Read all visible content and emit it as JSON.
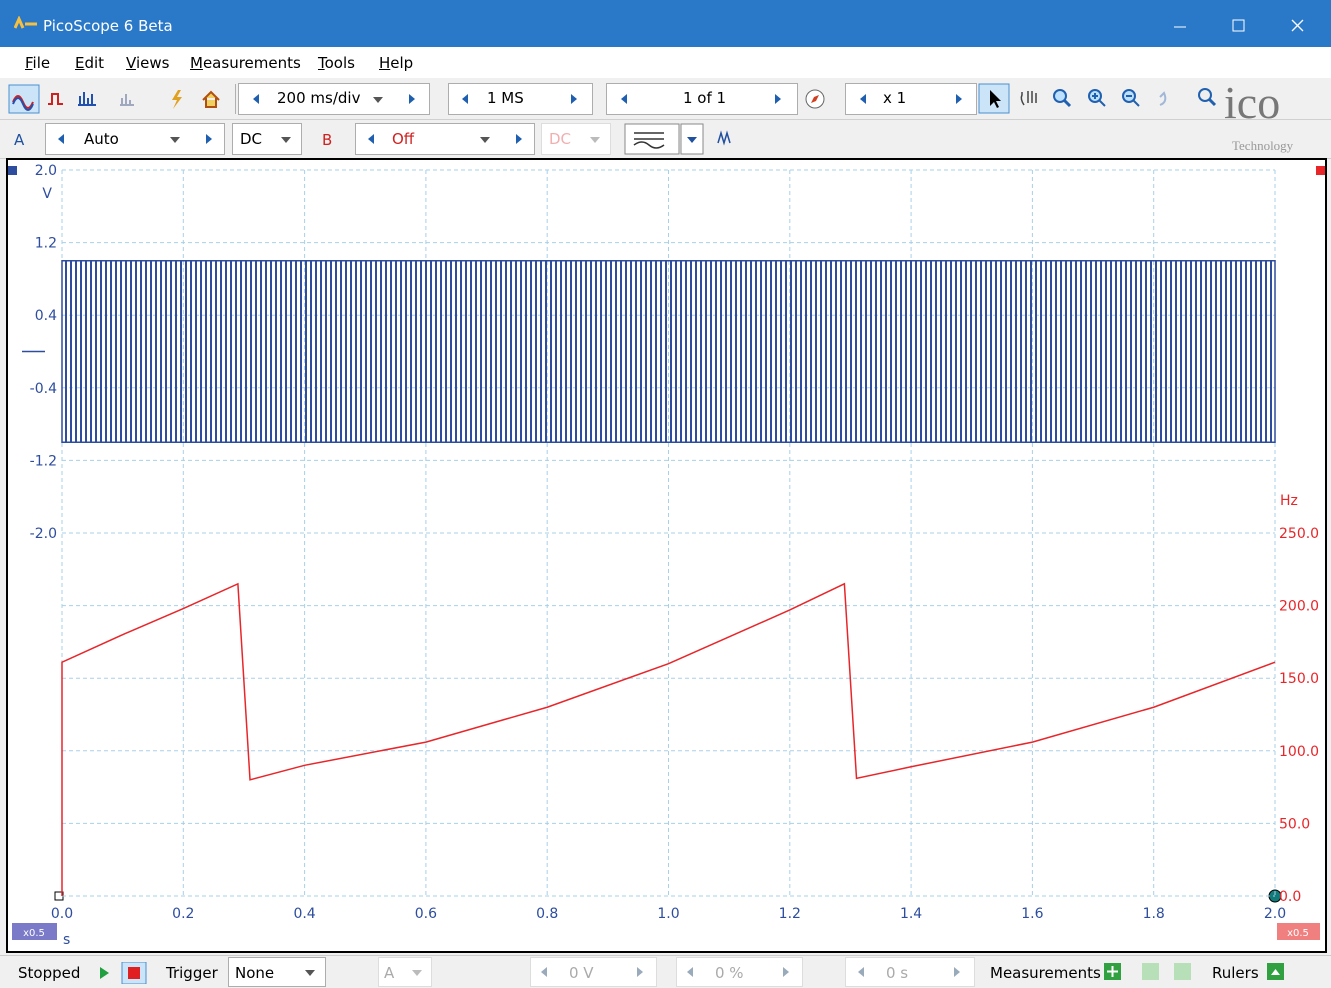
{
  "window": {
    "title": "PicoScope 6 Beta"
  },
  "menu": [
    "File",
    "Edit",
    "Views",
    "Measurements",
    "Tools",
    "Help"
  ],
  "toolbar": {
    "timebase": "200 ms/div",
    "samples": "1 MS",
    "buffer": "1 of 1",
    "zoom": "x 1",
    "logo": "ico",
    "logo_sub": "Technology"
  },
  "channels": {
    "a_label": "A",
    "a_range": "Auto",
    "a_coupling": "DC",
    "b_label": "B",
    "b_range": "Off",
    "b_coupling": "DC"
  },
  "status": {
    "state": "Stopped",
    "trigger_label": "Trigger",
    "trigger_mode": "None",
    "trigger_channel": "A",
    "threshold": "0 V",
    "pre_trigger": "0 %",
    "delay": "0 s",
    "measurements": "Measurements",
    "rulers": "Rulers"
  },
  "chart_data": {
    "type": "line",
    "x_unit": "s",
    "y_unit": "V",
    "y2_unit": "Hz",
    "x_zoom": "x0.5",
    "y2_zoom": "x0.5",
    "xlim": [
      0,
      2
    ],
    "xticks": [
      {
        "value": 0,
        "label": "0.0"
      },
      0.2,
      0.4,
      0.6,
      0.8,
      {
        "value": 1,
        "label": "1.0"
      },
      1.2,
      1.4,
      1.6,
      1.8,
      {
        "value": 2,
        "label": "2.0"
      }
    ],
    "ylim": [
      -6,
      2
    ],
    "yticks": [
      {
        "value": 2,
        "label": "2.0"
      },
      1.2,
      0.4,
      -0.4,
      -1.2,
      {
        "value": -2,
        "label": "-2.0"
      }
    ],
    "y2lim": [
      0,
      500
    ],
    "y2ticks": [
      {
        "value": 250,
        "label": "250.0"
      },
      {
        "value": 200,
        "label": "200.0"
      },
      {
        "value": 150,
        "label": "150.0"
      },
      {
        "value": 100,
        "label": "100.0"
      },
      {
        "value": 50,
        "label": "50.0"
      },
      {
        "value": 0,
        "label": "0.0"
      }
    ],
    "grid": true,
    "series": [
      {
        "color": "#2e4d9e",
        "x": [
          0,
          2
        ],
        "high": 1.0,
        "low": -1.0
      },
      {
        "color": "#e8262a",
        "axis": "y2",
        "x": [
          0,
          0,
          0.1,
          0.2,
          0.29,
          0.31,
          0.4,
          0.6,
          0.8,
          1.0,
          1.2,
          1.29,
          1.31,
          1.4,
          1.6,
          1.8,
          2.0
        ],
        "values": [
          0,
          161,
          180,
          198,
          215,
          80,
          90,
          106,
          130,
          160,
          197,
          215,
          81,
          89,
          106,
          130,
          161
        ]
      }
    ]
  }
}
